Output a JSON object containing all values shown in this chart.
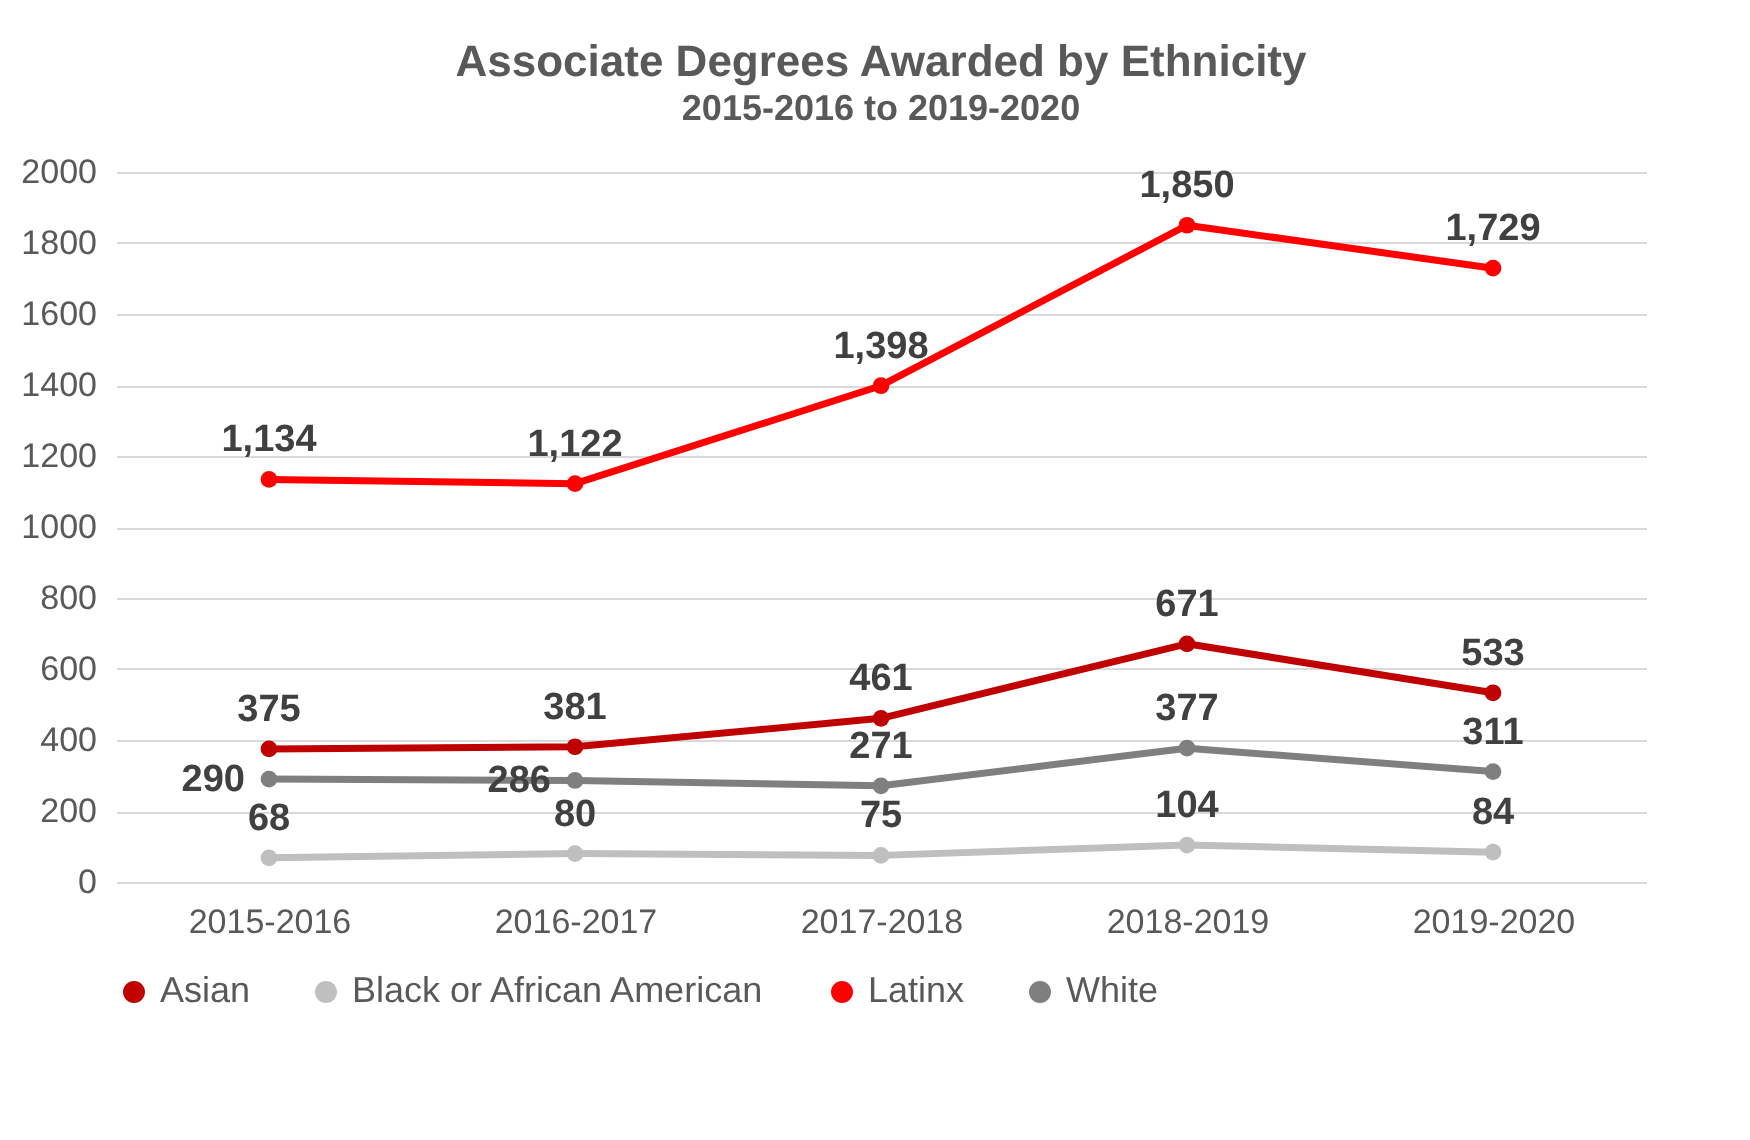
{
  "chart_data": {
    "type": "line",
    "title": "Associate Degrees Awarded by Ethnicity",
    "subtitle": "2015-2016 to 2019-2020",
    "categories": [
      "2015-2016",
      "2016-2017",
      "2017-2018",
      "2018-2019",
      "2019-2020"
    ],
    "series": [
      {
        "name": "Asian",
        "color": "#c00000",
        "values": [
          375,
          381,
          461,
          671,
          533
        ],
        "value_labels": [
          "375",
          "381",
          "461",
          "671",
          "533"
        ]
      },
      {
        "name": "Black or African American",
        "color": "#bfbfbf",
        "values": [
          68,
          80,
          75,
          104,
          84
        ],
        "value_labels": [
          "68",
          "80",
          "75",
          "104",
          "84"
        ]
      },
      {
        "name": "Latinx",
        "color": "#ff0000",
        "values": [
          1134,
          1122,
          1398,
          1850,
          1729
        ],
        "value_labels": [
          "1,134",
          "1,122",
          "1,398",
          "1,850",
          "1,729"
        ]
      },
      {
        "name": "White",
        "color": "#7f7f7f",
        "values": [
          290,
          286,
          271,
          377,
          311
        ],
        "value_labels": [
          "290",
          "286",
          "271",
          "377",
          "311"
        ]
      }
    ],
    "ylim": [
      0,
      2000
    ],
    "yticks": [
      0,
      200,
      400,
      600,
      800,
      1000,
      1200,
      1400,
      1600,
      1800,
      2000
    ],
    "grid": "y",
    "legend": "bottom",
    "marker": "circle",
    "line_style": "solid"
  }
}
